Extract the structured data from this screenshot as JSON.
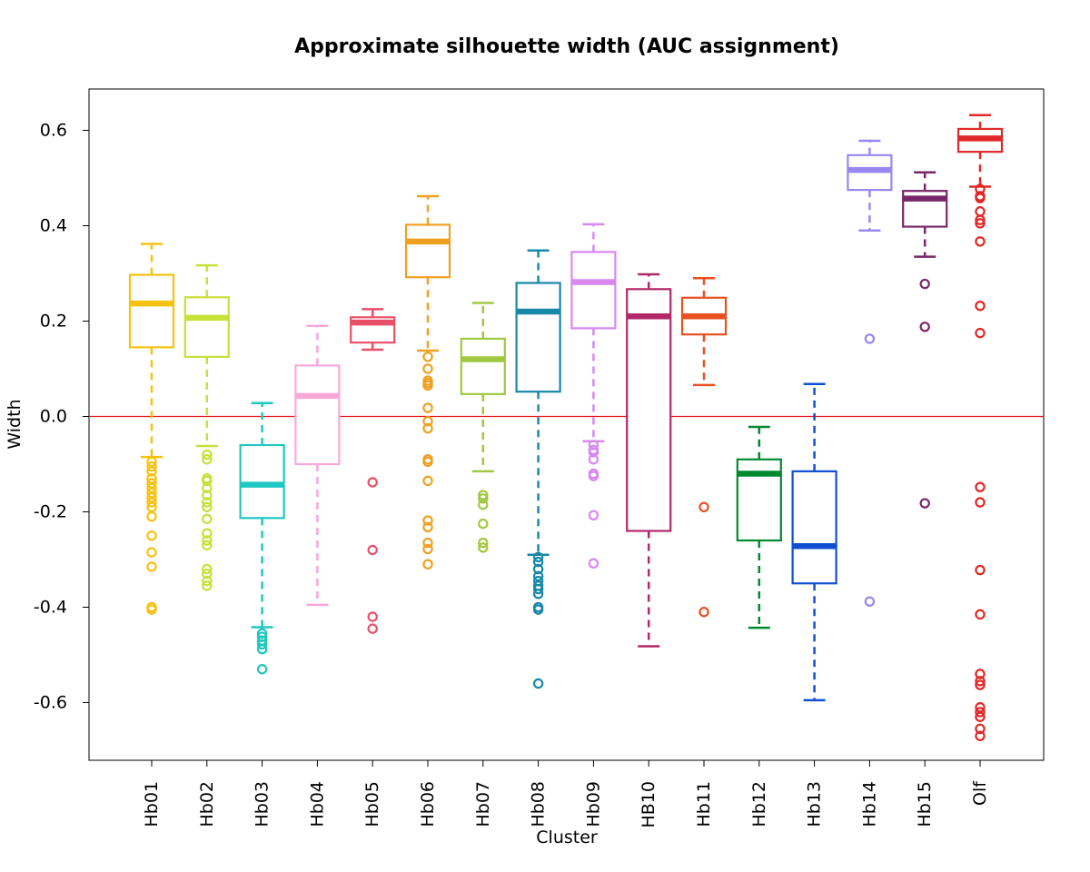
{
  "chart_data": {
    "type": "boxplot",
    "title": "Approximate silhouette width (AUC assignment)",
    "xlabel": "Cluster",
    "ylabel": "Width",
    "ylim": [
      -0.72,
      0.68
    ],
    "yticks": [
      -0.6,
      -0.4,
      -0.2,
      0.0,
      0.2,
      0.4,
      0.6
    ],
    "ytick_labels": [
      "-0.6",
      "-0.4",
      "-0.2",
      "0.0",
      "0.2",
      "0.4",
      "0.6"
    ],
    "reference_line": {
      "y": 0.0,
      "color": "#e41a1c"
    },
    "grid": false,
    "legend": "none",
    "series": [
      {
        "name": "Hb01",
        "color": "#f5c20f",
        "whisker_low": -0.085,
        "q1": 0.145,
        "median": 0.237,
        "q3": 0.297,
        "whisker_high": 0.362,
        "outliers": [
          -0.095,
          -0.105,
          -0.115,
          -0.13,
          -0.14,
          -0.15,
          -0.16,
          -0.17,
          -0.18,
          -0.19,
          -0.21,
          -0.25,
          -0.285,
          -0.315,
          -0.4,
          -0.405
        ]
      },
      {
        "name": "Hb02",
        "color": "#c8e03a",
        "whisker_low": -0.062,
        "q1": 0.125,
        "median": 0.207,
        "q3": 0.25,
        "whisker_high": 0.317,
        "outliers": [
          -0.08,
          -0.09,
          -0.13,
          -0.135,
          -0.15,
          -0.165,
          -0.18,
          -0.19,
          -0.215,
          -0.245,
          -0.26,
          -0.27,
          -0.32,
          -0.33,
          -0.345,
          -0.355
        ]
      },
      {
        "name": "Hb03",
        "color": "#1ec8c0",
        "whisker_low": -0.442,
        "q1": -0.213,
        "median": -0.143,
        "q3": -0.06,
        "whisker_high": 0.028,
        "outliers": [
          -0.455,
          -0.462,
          -0.47,
          -0.478,
          -0.488,
          -0.53
        ]
      },
      {
        "name": "Hb04",
        "color": "#f8a8d8",
        "whisker_low": -0.395,
        "q1": -0.1,
        "median": 0.043,
        "q3": 0.107,
        "whisker_high": 0.19,
        "outliers": []
      },
      {
        "name": "Hb05",
        "color": "#e8506a",
        "whisker_low": 0.14,
        "q1": 0.155,
        "median": 0.197,
        "q3": 0.208,
        "whisker_high": 0.225,
        "outliers": [
          -0.138,
          -0.28,
          -0.42,
          -0.445
        ]
      },
      {
        "name": "Hb06",
        "color": "#f0a020",
        "whisker_low": 0.138,
        "q1": 0.292,
        "median": 0.367,
        "q3": 0.402,
        "whisker_high": 0.462,
        "outliers": [
          0.125,
          0.1,
          0.075,
          0.07,
          0.065,
          0.018,
          -0.01,
          -0.025,
          -0.09,
          -0.095,
          -0.135,
          -0.218,
          -0.232,
          -0.265,
          -0.278,
          -0.31
        ]
      },
      {
        "name": "Hb07",
        "color": "#a0c840",
        "whisker_low": -0.115,
        "q1": 0.047,
        "median": 0.12,
        "q3": 0.163,
        "whisker_high": 0.238,
        "outliers": [
          -0.165,
          -0.172,
          -0.185,
          -0.225,
          -0.265,
          -0.275
        ]
      },
      {
        "name": "Hb08",
        "color": "#1888a8",
        "whisker_low": -0.29,
        "q1": 0.052,
        "median": 0.22,
        "q3": 0.28,
        "whisker_high": 0.348,
        "outliers": [
          -0.295,
          -0.305,
          -0.32,
          -0.335,
          -0.345,
          -0.355,
          -0.362,
          -0.372,
          -0.4,
          -0.405,
          -0.56
        ]
      },
      {
        "name": "Hb09",
        "color": "#d888f0",
        "whisker_low": -0.052,
        "q1": 0.185,
        "median": 0.282,
        "q3": 0.345,
        "whisker_high": 0.403,
        "outliers": [
          -0.06,
          -0.07,
          -0.075,
          -0.09,
          -0.12,
          -0.125,
          -0.207,
          -0.308
        ]
      },
      {
        "name": "HB10",
        "color": "#b02868",
        "whisker_low": -0.482,
        "q1": -0.24,
        "median": 0.21,
        "q3": 0.267,
        "whisker_high": 0.298,
        "outliers": []
      },
      {
        "name": "Hb11",
        "color": "#e85020",
        "whisker_low": 0.066,
        "q1": 0.172,
        "median": 0.21,
        "q3": 0.249,
        "whisker_high": 0.29,
        "outliers": [
          -0.19,
          -0.41
        ]
      },
      {
        "name": "Hb12",
        "color": "#008a30",
        "whisker_low": -0.443,
        "q1": -0.26,
        "median": -0.12,
        "q3": -0.09,
        "whisker_high": -0.022,
        "outliers": []
      },
      {
        "name": "Hb13",
        "color": "#1050d0",
        "whisker_low": -0.595,
        "q1": -0.35,
        "median": -0.272,
        "q3": -0.115,
        "whisker_high": 0.068,
        "outliers": []
      },
      {
        "name": "Hb14",
        "color": "#9888f0",
        "whisker_low": 0.39,
        "q1": 0.475,
        "median": 0.517,
        "q3": 0.548,
        "whisker_high": 0.578,
        "outliers": [
          0.163,
          -0.388
        ]
      },
      {
        "name": "Hb15",
        "color": "#782868",
        "whisker_low": 0.335,
        "q1": 0.398,
        "median": 0.457,
        "q3": 0.473,
        "whisker_high": 0.512,
        "outliers": [
          0.278,
          0.188,
          -0.182
        ]
      },
      {
        "name": "Olf",
        "color": "#e02828",
        "whisker_low": 0.482,
        "q1": 0.555,
        "median": 0.583,
        "q3": 0.603,
        "whisker_high": 0.632,
        "outliers": [
          0.477,
          0.462,
          0.458,
          0.43,
          0.412,
          0.405,
          0.367,
          0.232,
          0.175,
          -0.148,
          -0.18,
          -0.322,
          -0.415,
          -0.54,
          -0.555,
          -0.563,
          -0.61,
          -0.62,
          -0.63,
          -0.655,
          -0.67
        ]
      }
    ]
  }
}
